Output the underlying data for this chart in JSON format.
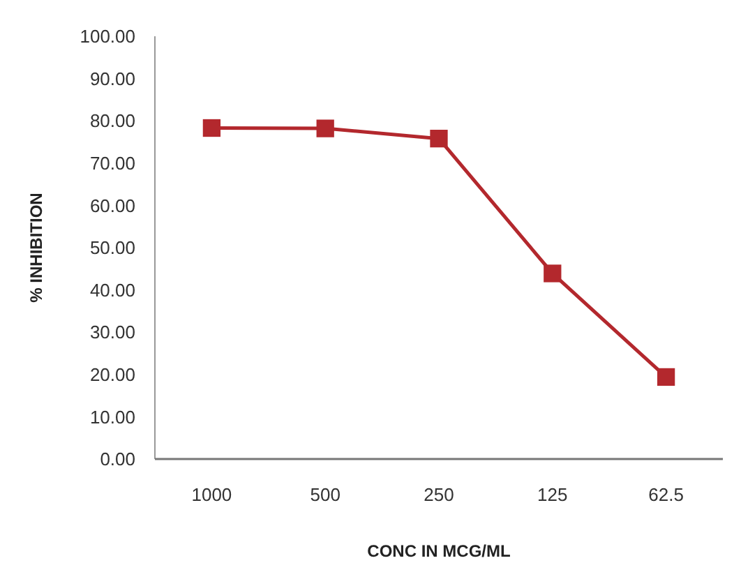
{
  "chart_data": {
    "type": "line",
    "xlabel": "CONC IN MCG/ML",
    "ylabel": "% INHIBITION",
    "categories": [
      "1000",
      "500",
      "250",
      "125",
      "62.5"
    ],
    "series": [
      {
        "color": "#b3282d",
        "values": [
          78.3,
          78.2,
          75.8,
          43.9,
          19.4
        ]
      }
    ],
    "ylim": [
      0,
      100
    ],
    "yticks": [
      {
        "value": 0,
        "label": "0.00"
      },
      {
        "value": 10,
        "label": "10.00"
      },
      {
        "value": 20,
        "label": "20.00"
      },
      {
        "value": 30,
        "label": "30.00"
      },
      {
        "value": 40,
        "label": "40.00"
      },
      {
        "value": 50,
        "label": "50.00"
      },
      {
        "value": 60,
        "label": "60.00"
      },
      {
        "value": 70,
        "label": "70.00"
      },
      {
        "value": 80,
        "label": "80.00"
      },
      {
        "value": 90,
        "label": "90.00"
      },
      {
        "value": 100,
        "label": "100.00"
      }
    ],
    "marker": "square",
    "grid": false
  }
}
